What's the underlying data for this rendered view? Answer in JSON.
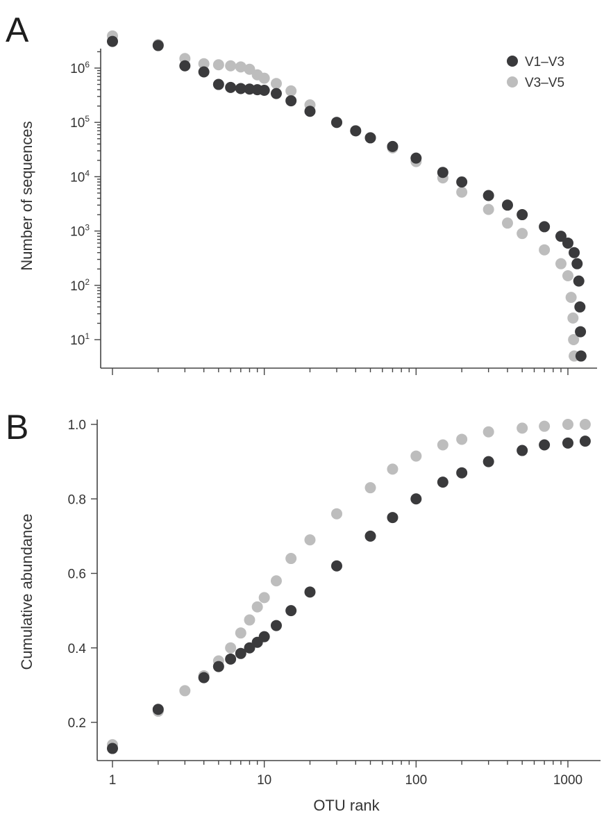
{
  "colors": {
    "V1-V3": "#3a3a3c",
    "V3-V5": "#bdbdbd",
    "axis": "#444444"
  },
  "chart_data": [
    {
      "panel": "A",
      "type": "scatter",
      "title": "",
      "xlabel": "",
      "ylabel": "Number of sequences",
      "xscale": "log",
      "yscale": "log",
      "xlim": [
        0.93,
        1330
      ],
      "ylim": [
        3,
        4000000
      ],
      "x_ticks": [
        1,
        10,
        100,
        1000
      ],
      "x_tick_labels_shown": false,
      "y_ticks": [
        {
          "value": 10,
          "base": "10",
          "exp": "1"
        },
        {
          "value": 100,
          "base": "10",
          "exp": "2"
        },
        {
          "value": 1000,
          "base": "10",
          "exp": "3"
        },
        {
          "value": 10000,
          "base": "10",
          "exp": "4"
        },
        {
          "value": 100000,
          "base": "10",
          "exp": "5"
        },
        {
          "value": 1000000,
          "base": "10",
          "exp": "6"
        }
      ],
      "legend": {
        "placement": "top-right"
      },
      "series": [
        {
          "name": "V1–V3",
          "x": [
            1,
            2,
            3,
            4,
            5,
            6,
            7,
            8,
            9,
            10,
            12,
            15,
            20,
            30,
            40,
            50,
            70,
            100,
            150,
            200,
            300,
            400,
            500,
            700,
            900,
            1000,
            1100,
            1150,
            1180,
            1200,
            1210,
            1220
          ],
          "y": [
            3100000,
            2600000,
            1100000,
            850000,
            500000,
            440000,
            420000,
            410000,
            400000,
            390000,
            340000,
            250000,
            160000,
            100000,
            70000,
            52000,
            36000,
            22000,
            12000,
            8000,
            4500,
            3000,
            2000,
            1200,
            800,
            600,
            400,
            250,
            120,
            40,
            14,
            5
          ]
        },
        {
          "name": "V3–V5",
          "x": [
            1,
            2,
            3,
            4,
            5,
            6,
            7,
            8,
            9,
            10,
            12,
            15,
            20,
            30,
            40,
            50,
            70,
            100,
            150,
            200,
            300,
            400,
            500,
            700,
            900,
            1000,
            1050,
            1080,
            1090,
            1100
          ],
          "y": [
            3900000,
            2700000,
            1500000,
            1200000,
            1150000,
            1100000,
            1050000,
            950000,
            750000,
            650000,
            520000,
            380000,
            210000,
            100000,
            70000,
            52000,
            34000,
            19000,
            9500,
            5200,
            2500,
            1400,
            900,
            450,
            250,
            150,
            60,
            25,
            10,
            5
          ]
        }
      ]
    },
    {
      "panel": "B",
      "type": "scatter",
      "title": "",
      "xlabel": "OTU rank",
      "ylabel": "Cumulative abundance",
      "xscale": "log",
      "yscale": "linear",
      "xlim": [
        0.93,
        1330
      ],
      "ylim": [
        0.1,
        1.0
      ],
      "x_ticks": [
        1,
        10,
        100,
        1000
      ],
      "x_tick_labels": [
        "1",
        "10",
        "100",
        "1000"
      ],
      "y_ticks": [
        0.2,
        0.4,
        0.6,
        0.8,
        1.0
      ],
      "y_tick_labels": [
        "0.2",
        "0.4",
        "0.6",
        "0.8",
        "1.0"
      ],
      "series": [
        {
          "name": "V1–V3",
          "x": [
            1,
            2,
            4,
            5,
            6,
            7,
            8,
            9,
            10,
            12,
            15,
            20,
            30,
            50,
            70,
            100,
            150,
            200,
            300,
            500,
            700,
            1000,
            1300
          ],
          "y": [
            0.13,
            0.235,
            0.32,
            0.35,
            0.37,
            0.385,
            0.4,
            0.415,
            0.43,
            0.46,
            0.5,
            0.55,
            0.62,
            0.7,
            0.75,
            0.8,
            0.845,
            0.87,
            0.9,
            0.93,
            0.945,
            0.95,
            0.955
          ]
        },
        {
          "name": "V3–V5",
          "x": [
            1,
            2,
            3,
            4,
            5,
            6,
            7,
            8,
            9,
            10,
            12,
            15,
            20,
            30,
            50,
            70,
            100,
            150,
            200,
            300,
            500,
            700,
            1000,
            1300
          ],
          "y": [
            0.14,
            0.23,
            0.285,
            0.325,
            0.365,
            0.4,
            0.44,
            0.475,
            0.51,
            0.535,
            0.58,
            0.64,
            0.69,
            0.76,
            0.83,
            0.88,
            0.915,
            0.945,
            0.96,
            0.98,
            0.99,
            0.995,
            1.0,
            1.0
          ]
        }
      ]
    }
  ]
}
